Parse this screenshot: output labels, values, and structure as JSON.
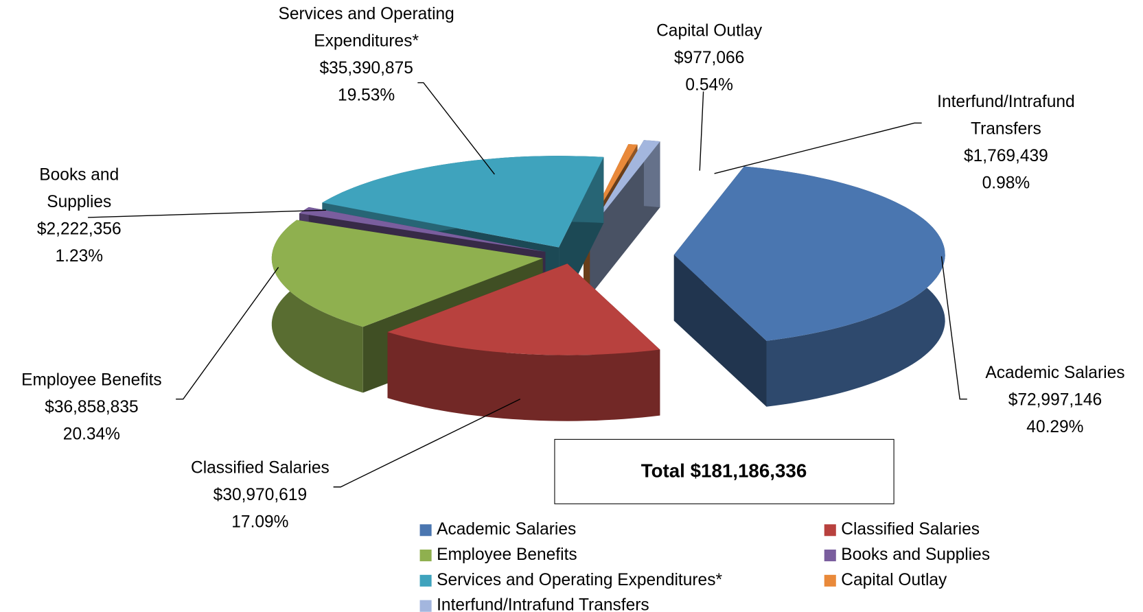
{
  "chart_data": {
    "type": "pie",
    "categories": [
      "Academic Salaries",
      "Classified Salaries",
      "Employee Benefits",
      "Books and Supplies",
      "Services and Operating Expenditures*",
      "Capital Outlay",
      "Interfund/Intrafund Transfers"
    ],
    "callout_names": [
      [
        "Academic Salaries"
      ],
      [
        "Classified Salaries"
      ],
      [
        "Employee Benefits"
      ],
      [
        "Books and",
        "Supplies"
      ],
      [
        "Services and Operating",
        "Expenditures*"
      ],
      [
        "Capital Outlay"
      ],
      [
        "Interfund/Intrafund",
        "Transfers"
      ]
    ],
    "values": [
      72997146,
      30970619,
      36858835,
      2222356,
      35390875,
      977066,
      1769439
    ],
    "value_labels": [
      "$72,997,146",
      "$30,970,619",
      "$36,858,835",
      "$2,222,356",
      "$35,390,875",
      "$977,066",
      "$1,769,439"
    ],
    "percents": [
      40.29,
      17.09,
      20.34,
      1.23,
      19.53,
      0.54,
      0.98
    ],
    "percent_labels": [
      "40.29%",
      "17.09%",
      "20.34%",
      "1.23%",
      "19.53%",
      "0.54%",
      "0.98%"
    ],
    "colors": [
      "#4a76b0",
      "#b8413e",
      "#8fb04f",
      "#7a5e9e",
      "#3fa3bd",
      "#e9893a",
      "#a3b6de"
    ],
    "total_label": "Total $181,186,336",
    "legend": "bottom-right"
  }
}
